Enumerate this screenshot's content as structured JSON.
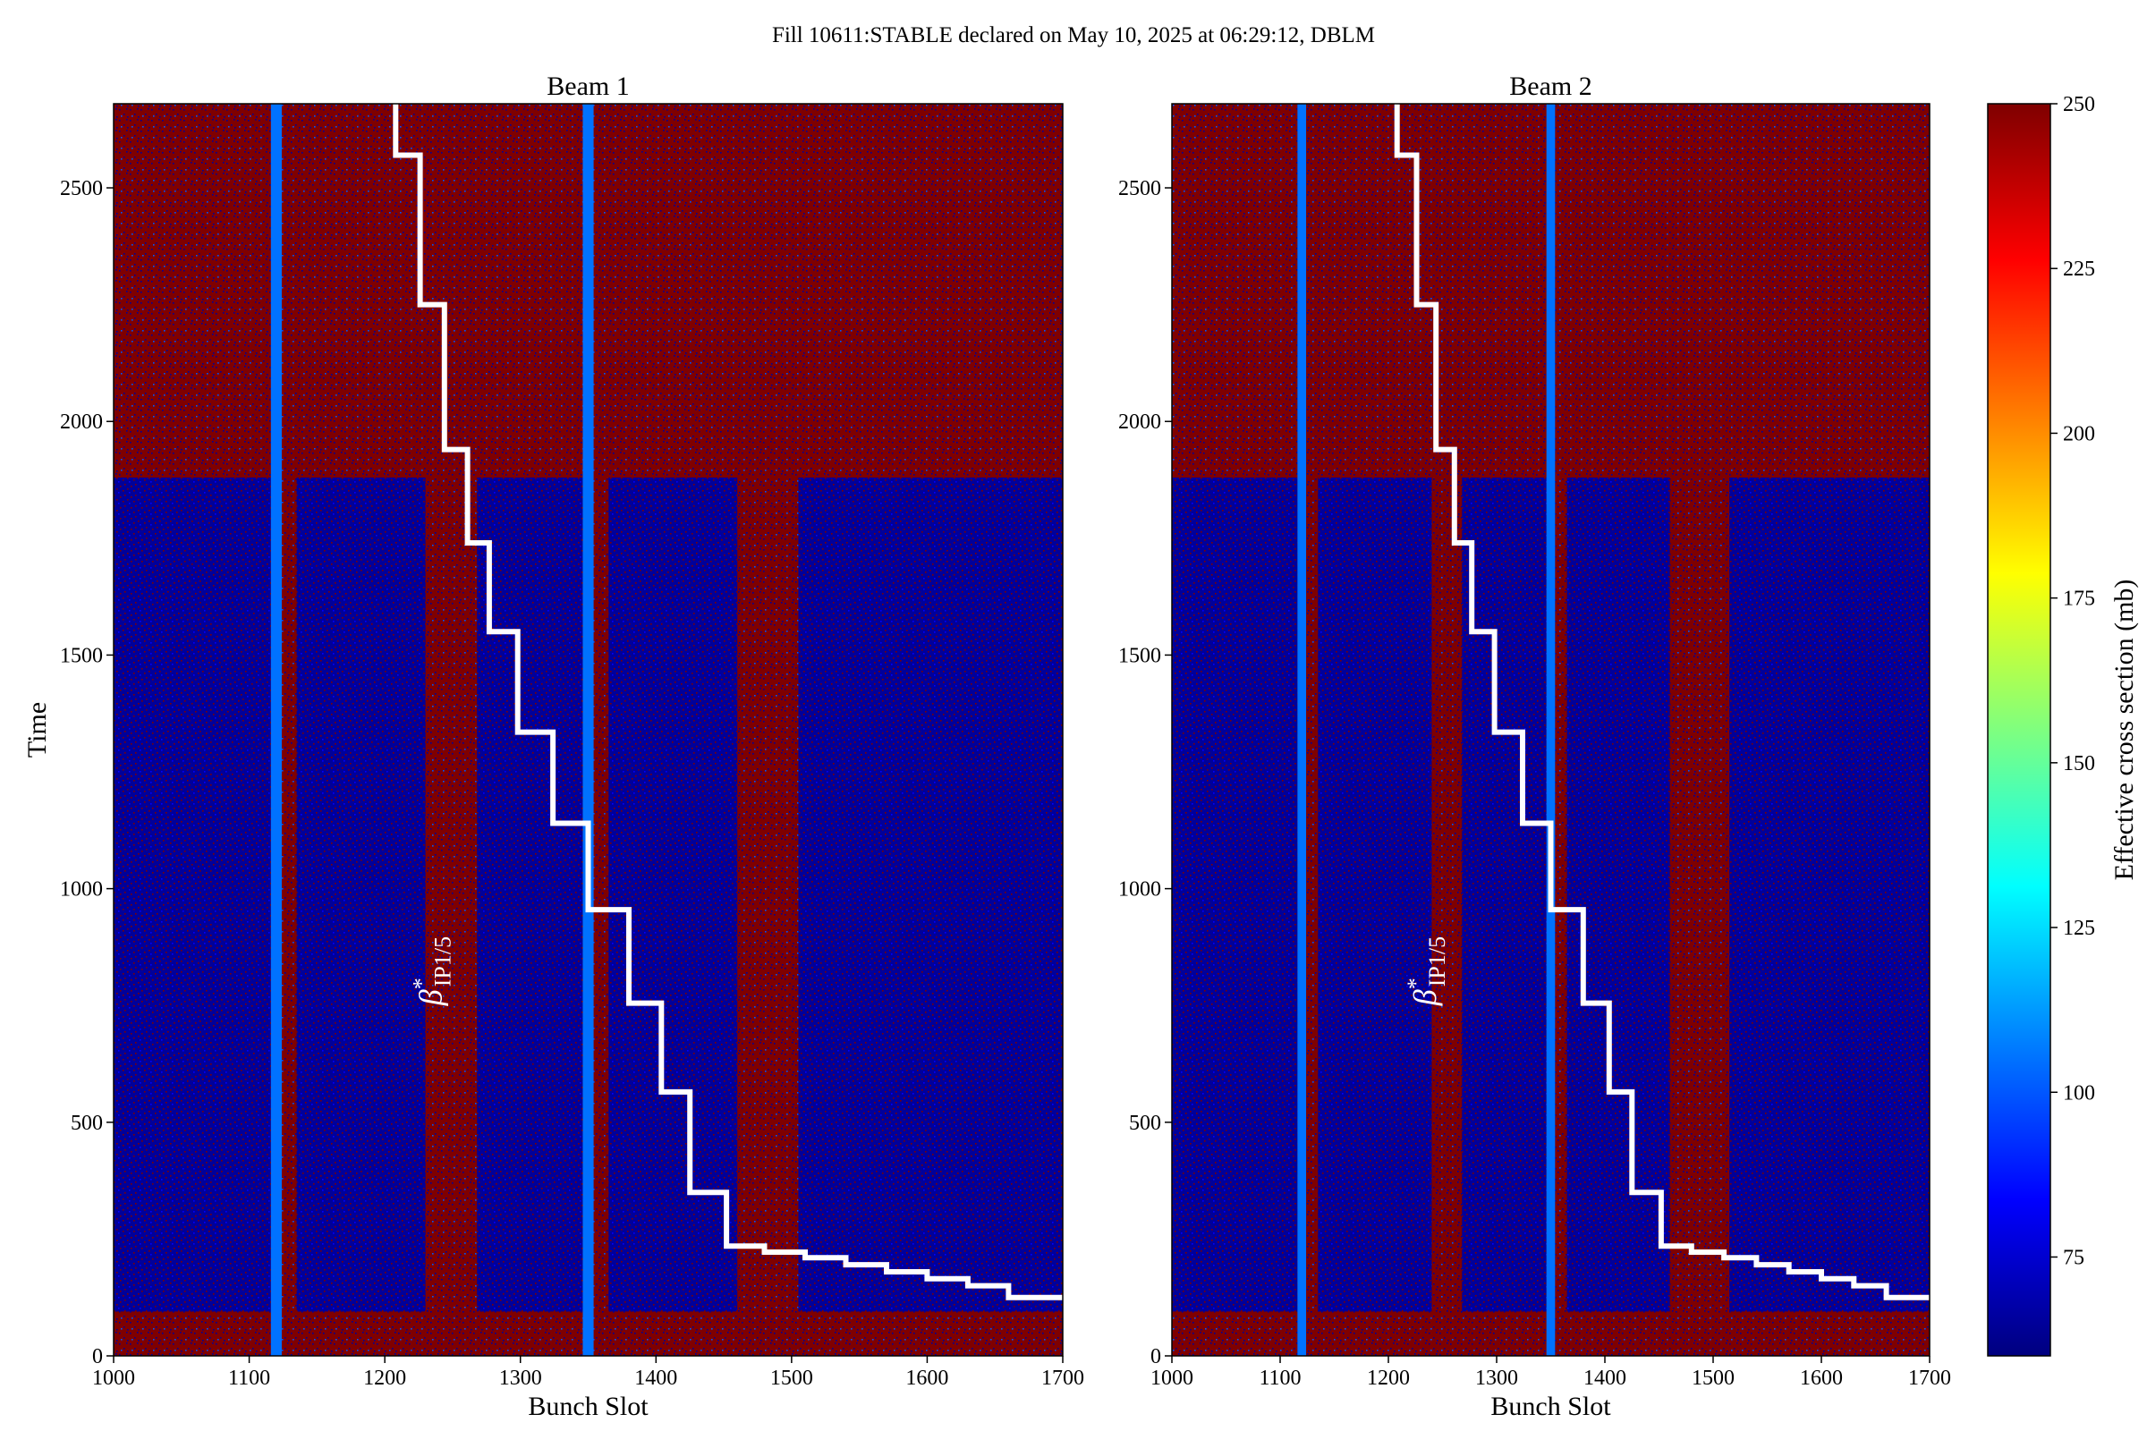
{
  "figure": {
    "suptitle": "Fill 10611:STABLE declared on May 10, 2025 at 06:29:12, DBLM"
  },
  "colorbar": {
    "label": "Effective cross section (mb)",
    "min": 60,
    "max": 250,
    "ticks": [
      75,
      100,
      125,
      150,
      175,
      200,
      225,
      250
    ],
    "colormap": [
      "#00007f",
      "#0000ff",
      "#007fff",
      "#00ffff",
      "#7fff7f",
      "#ffff00",
      "#ff7f00",
      "#ff0000",
      "#7f0000"
    ]
  },
  "annotation": {
    "beta_symbol": "β",
    "beta_star": "*",
    "beta_subscript": "IP1/5"
  },
  "chart_data": [
    {
      "type": "heatmap",
      "title": "Beam 1",
      "xlabel": "Bunch Slot",
      "ylabel": "Time",
      "xlim": [
        1000,
        1700
      ],
      "ylim": [
        0,
        2680
      ],
      "xticks": [
        1000,
        1100,
        1200,
        1300,
        1400,
        1500,
        1600,
        1700
      ],
      "yticks": [
        0,
        500,
        1000,
        1500,
        2000,
        2500
      ],
      "grid": false,
      "colorbar_label": "Effective cross section (mb)",
      "background_value": 250,
      "filled_bunch_columns": [
        {
          "x0": 1116,
          "x1": 1124,
          "value": 105
        },
        {
          "x0": 1346,
          "x1": 1354,
          "value": 105
        }
      ],
      "low_value_bands": [
        {
          "x0": 1000,
          "x1": 1116,
          "y0": 95,
          "y1": 1880,
          "value": 70
        },
        {
          "x0": 1135,
          "x1": 1230,
          "y0": 95,
          "y1": 1880,
          "value": 70
        },
        {
          "x0": 1268,
          "x1": 1346,
          "y0": 95,
          "y1": 1880,
          "value": 70
        },
        {
          "x0": 1365,
          "x1": 1460,
          "y0": 95,
          "y1": 1880,
          "value": 70
        },
        {
          "x0": 1505,
          "x1": 1700,
          "y0": 95,
          "y1": 1880,
          "value": 70
        }
      ],
      "staircase": {
        "label": "β*IP1/5",
        "x": [
          1208,
          1208,
          1226,
          1226,
          1244,
          1244,
          1261,
          1261,
          1277,
          1277,
          1298,
          1298,
          1324,
          1324,
          1350,
          1350,
          1380,
          1380,
          1404,
          1404,
          1425,
          1425,
          1452,
          1452,
          1480,
          1480,
          1510,
          1510,
          1540,
          1540,
          1570,
          1570,
          1600,
          1600,
          1630,
          1630,
          1660,
          1660,
          1700
        ],
        "y": [
          2680,
          2570,
          2570,
          2250,
          2250,
          1940,
          1940,
          1740,
          1740,
          1550,
          1550,
          1335,
          1335,
          1140,
          1140,
          955,
          955,
          755,
          755,
          565,
          565,
          350,
          350,
          235,
          235,
          222,
          222,
          210,
          210,
          195,
          195,
          180,
          180,
          165,
          165,
          150,
          150,
          125,
          125
        ]
      }
    },
    {
      "type": "heatmap",
      "title": "Beam 2",
      "xlabel": "Bunch Slot",
      "ylabel": "",
      "xlim": [
        1000,
        1700
      ],
      "ylim": [
        0,
        2680
      ],
      "xticks": [
        1000,
        1100,
        1200,
        1300,
        1400,
        1500,
        1600,
        1700
      ],
      "yticks": [
        0,
        500,
        1000,
        1500,
        2000,
        2500
      ],
      "grid": false,
      "colorbar_label": "Effective cross section (mb)",
      "background_value": 250,
      "filled_bunch_columns": [
        {
          "x0": 1116,
          "x1": 1124,
          "value": 105
        },
        {
          "x0": 1346,
          "x1": 1354,
          "value": 105
        }
      ],
      "low_value_bands": [
        {
          "x0": 1000,
          "x1": 1116,
          "y0": 95,
          "y1": 1880,
          "value": 70
        },
        {
          "x0": 1135,
          "x1": 1240,
          "y0": 95,
          "y1": 1880,
          "value": 70
        },
        {
          "x0": 1268,
          "x1": 1346,
          "y0": 95,
          "y1": 1880,
          "value": 70
        },
        {
          "x0": 1365,
          "x1": 1460,
          "y0": 95,
          "y1": 1880,
          "value": 70
        },
        {
          "x0": 1515,
          "x1": 1700,
          "y0": 95,
          "y1": 1880,
          "value": 70
        }
      ],
      "staircase": {
        "label": "β*IP1/5",
        "x": [
          1208,
          1208,
          1226,
          1226,
          1244,
          1244,
          1261,
          1261,
          1277,
          1277,
          1298,
          1298,
          1324,
          1324,
          1350,
          1350,
          1380,
          1380,
          1404,
          1404,
          1425,
          1425,
          1452,
          1452,
          1480,
          1480,
          1510,
          1510,
          1540,
          1540,
          1570,
          1570,
          1600,
          1600,
          1630,
          1630,
          1660,
          1660,
          1700
        ],
        "y": [
          2680,
          2570,
          2570,
          2250,
          2250,
          1940,
          1940,
          1740,
          1740,
          1550,
          1550,
          1335,
          1335,
          1140,
          1140,
          955,
          955,
          755,
          755,
          565,
          565,
          350,
          350,
          235,
          235,
          222,
          222,
          210,
          210,
          195,
          195,
          180,
          180,
          165,
          165,
          150,
          150,
          125,
          125
        ]
      }
    }
  ]
}
